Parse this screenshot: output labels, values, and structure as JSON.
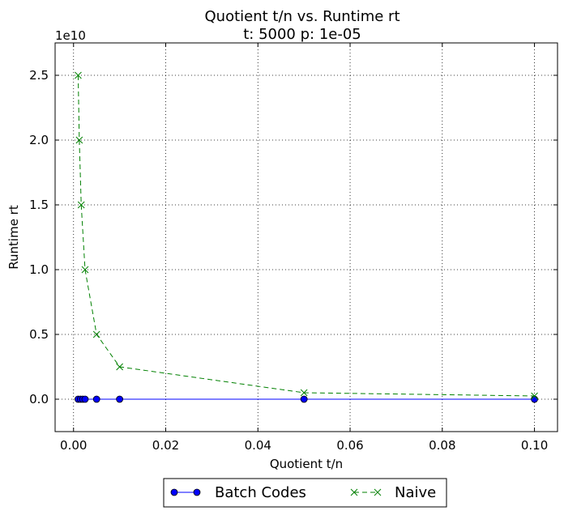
{
  "chart_data": {
    "type": "line",
    "title": "Quotient t/n vs. Runtime rt",
    "subtitle": "t: 5000 p: 1e-05",
    "xlabel": "Quotient t/n",
    "ylabel": "Runtime rt",
    "y_offset_label": "1e10",
    "xlim": [
      -0.004,
      0.105
    ],
    "ylim": [
      -0.25,
      2.75
    ],
    "y_unit_multiplier": 10000000000,
    "x_ticks": [
      0.0,
      0.02,
      0.04,
      0.06,
      0.08,
      0.1
    ],
    "x_tick_labels": [
      "0.00",
      "0.02",
      "0.04",
      "0.06",
      "0.08",
      "0.10"
    ],
    "y_ticks": [
      0.0,
      0.5,
      1.0,
      1.5,
      2.0,
      2.5
    ],
    "y_tick_labels": [
      "0.0",
      "0.5",
      "1.0",
      "1.5",
      "2.0",
      "2.5"
    ],
    "grid": true,
    "legend_position": "bottom-center",
    "series": [
      {
        "name": "Batch Codes",
        "color": "#0000ff",
        "marker": "circle",
        "line_style": "solid",
        "x": [
          0.001,
          0.0015,
          0.002,
          0.0025,
          0.005,
          0.01,
          0.05,
          0.1
        ],
        "y": [
          0.0,
          0.0,
          0.0,
          0.0,
          0.0,
          0.0,
          0.0,
          0.0
        ]
      },
      {
        "name": "Naive",
        "color": "#008000",
        "marker": "x",
        "line_style": "dashed",
        "x": [
          0.001,
          0.00125,
          0.0016667,
          0.0025,
          0.005,
          0.01,
          0.05,
          0.1
        ],
        "y": [
          2.5,
          2.0,
          1.5,
          1.0,
          0.5,
          0.25,
          0.05,
          0.025
        ]
      }
    ]
  }
}
